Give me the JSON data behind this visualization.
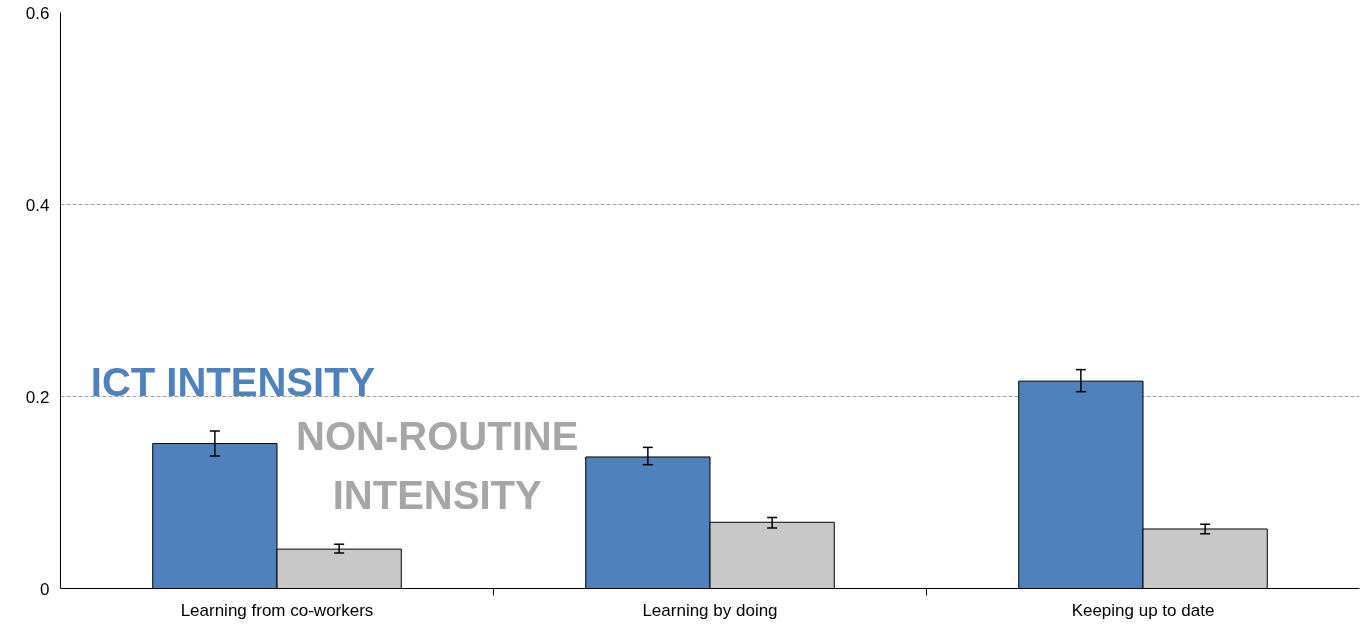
{
  "chart_data": {
    "type": "bar",
    "categories": [
      "Learning from co-workers",
      "Learning by doing",
      "Keeping up to date"
    ],
    "series": [
      {
        "name": "ICT INTENSITY",
        "color": "#4f81bd",
        "values": [
          0.151,
          0.137,
          0.216
        ],
        "errors": [
          [
            0.138,
            0.164
          ],
          [
            0.129,
            0.147
          ],
          [
            0.205,
            0.228
          ]
        ]
      },
      {
        "name": "NON-ROUTINE\nINTENSITY",
        "color": "#c8c8c8",
        "values": [
          0.041,
          0.069,
          0.062
        ],
        "errors": [
          [
            0.037,
            0.046
          ],
          [
            0.063,
            0.074
          ],
          [
            0.057,
            0.067
          ]
        ]
      }
    ],
    "ylim": [
      0,
      0.6
    ],
    "yticks": [
      0,
      0.2,
      0.4,
      0.6
    ],
    "grid": "y"
  }
}
